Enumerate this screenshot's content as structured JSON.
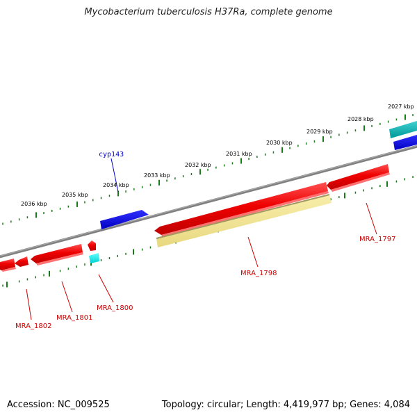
{
  "title": "Mycobacterium tuberculosis H37Ra, complete genome",
  "footer": {
    "accession": "Accession: NC_009525",
    "stats": "Topology: circular; Length: 4,419,977 bp; Genes: 4,084"
  },
  "colors": {
    "backbone": "#808080",
    "ticks": "#1a7a1a",
    "gene_red": "#ee0000",
    "gene_blue": "#0000dd",
    "gene_cyan": "#00dddd",
    "gene_teal": "#00b0b0",
    "gene_yellow": "#f0e090",
    "label_red": "#cc0000",
    "label_blue": "#0000cc"
  },
  "tick_labels": [
    "2027 kbp",
    "2028 kbp",
    "2029 kbp",
    "2030 kbp",
    "2031 kbp",
    "2032 kbp",
    "2033 kbp",
    "2034 kbp",
    "2035 kbp",
    "2036 kbp"
  ],
  "gene_labels": {
    "cyp143": "cyp143",
    "mra_1797": "MRA_1797",
    "mra_1798": "MRA_1798",
    "mra_1800": "MRA_1800",
    "mra_1801": "MRA_1801",
    "mra_1802": "MRA_1802"
  }
}
